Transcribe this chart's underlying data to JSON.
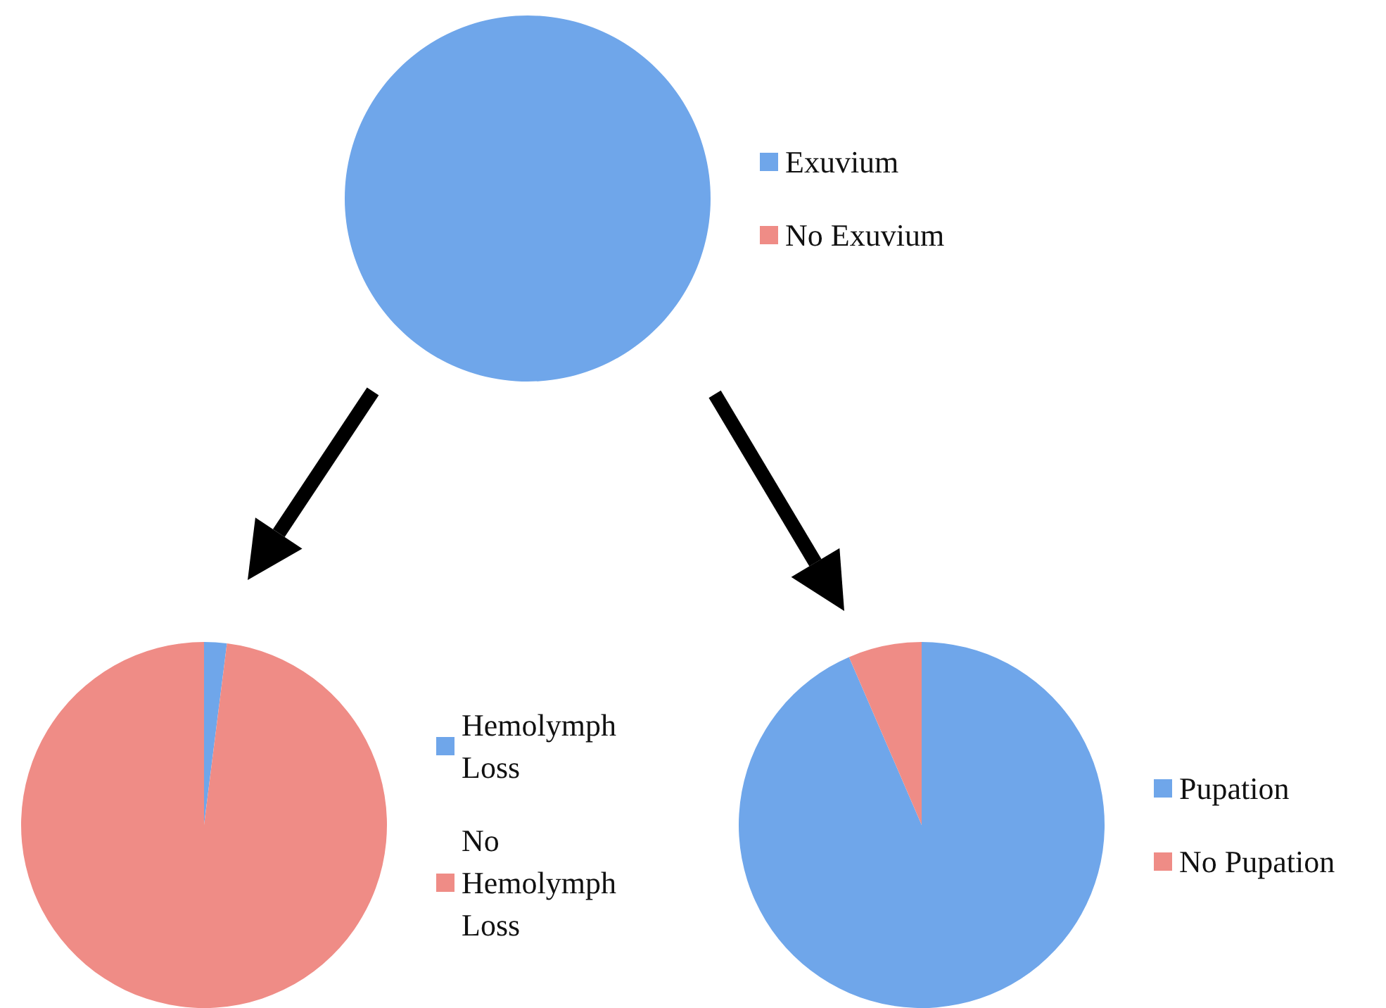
{
  "chart_data": [
    {
      "type": "pie",
      "categories": [
        "Exuvium",
        "No Exuvium"
      ],
      "values": [
        100,
        0
      ],
      "colors": [
        "#6fa6ea",
        "#ef8c86"
      ],
      "legend": "right"
    },
    {
      "type": "pie",
      "categories": [
        "Hemolymph Loss",
        "No Hemolymph Loss"
      ],
      "values": [
        2,
        98
      ],
      "colors": [
        "#6fa6ea",
        "#ef8c86"
      ],
      "legend": "right"
    },
    {
      "type": "pie",
      "categories": [
        "Pupation",
        "No Pupation"
      ],
      "values": [
        93.5,
        6.5
      ],
      "colors": [
        "#6fa6ea",
        "#ef8c86"
      ],
      "legend": "right"
    }
  ]
}
